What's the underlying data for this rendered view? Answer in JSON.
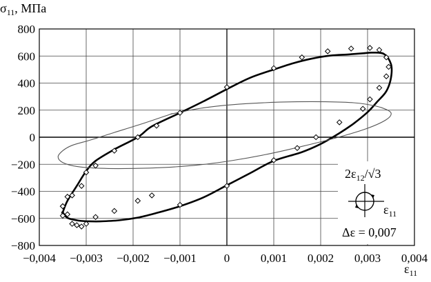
{
  "chart_data": {
    "type": "scatter",
    "ylabel": {
      "symbol": "σ",
      "subscript": "11",
      "unit": ", МПа"
    },
    "xlabel": {
      "symbol": "ε",
      "subscript": "11"
    },
    "xlim": [
      -0.004,
      0.004
    ],
    "ylim": [
      -800,
      800
    ],
    "x_ticks": [
      "−0,004",
      "−0,003",
      "−0,002",
      "−0,001",
      "0",
      "0,001",
      "0,002",
      "0,003",
      "0,004"
    ],
    "y_ticks": [
      "800",
      "600",
      "400",
      "200",
      "0",
      "−200",
      "−400",
      "−600",
      "−800"
    ],
    "grid": true,
    "annotation": {
      "shear_label": "2ε",
      "shear_sub": "12",
      "shear_div": "/√3",
      "axis_label": "ε",
      "axis_sub": "11",
      "amplitude": "Δε = 0,007"
    },
    "series": [
      {
        "type": "line",
        "style": "thick",
        "color": "#000000",
        "x": [
          -0.0035,
          -0.0034,
          -0.0032,
          -0.003,
          -0.0028,
          -0.0024,
          -0.0019,
          -0.0016,
          -0.001,
          -0.0005,
          0,
          0.0005,
          0.001,
          0.0014,
          0.0018,
          0.0022,
          0.0026,
          0.0029,
          0.0031,
          0.00335,
          0.0035,
          0.0035,
          0.0034,
          0.0032,
          0.003,
          0.0027,
          0.0024,
          0.002,
          0.0016,
          0.001,
          0.0005,
          0,
          -0.0005,
          -0.001,
          -0.0015,
          -0.0019,
          -0.0023,
          -0.0027,
          -0.003,
          -0.0032,
          -0.0034,
          -0.0035
        ],
        "y": [
          -555,
          -470,
          -360,
          -250,
          -175,
          -90,
          0,
          80,
          180,
          265,
          355,
          440,
          500,
          545,
          580,
          603,
          612,
          620,
          625,
          615,
          540,
          440,
          340,
          260,
          185,
          100,
          30,
          -50,
          -110,
          -175,
          -265,
          -355,
          -445,
          -510,
          -560,
          -594,
          -614,
          -622,
          -621,
          -614,
          -596,
          -555
        ]
      },
      {
        "type": "line",
        "style": "thin",
        "color": "#555555",
        "x": [
          -0.0012,
          -0.0009,
          -0.0005,
          0.0001,
          0.0008,
          0.0015,
          0.0021,
          0.0027,
          0.003,
          0.0033,
          0.0035,
          0.0034,
          0.003,
          0.0024,
          0.0016,
          0.0008,
          0.0001,
          -0.0006,
          -0.0013,
          -0.002,
          -0.0027,
          -0.0032,
          -0.0035,
          -0.0036,
          -0.0035,
          -0.0033,
          -0.0029,
          -0.0024,
          -0.0018,
          -0.0012
        ],
        "y": [
          170,
          192,
          217,
          240,
          255,
          262,
          262,
          255,
          242,
          218,
          180,
          130,
          66,
          2,
          -68,
          -130,
          -173,
          -205,
          -223,
          -231,
          -230,
          -216,
          -187,
          -145,
          -100,
          -60,
          -20,
          35,
          100,
          170
        ]
      },
      {
        "type": "scatter",
        "marker": "diamond",
        "x": [
          -0.0035,
          -0.0034,
          -0.0033,
          -0.0032,
          -0.0031,
          -0.003,
          -0.0028,
          -0.0024,
          -0.0019,
          -0.0016,
          -0.001,
          -0.001,
          0,
          0,
          0.001,
          0.001,
          0.0016,
          0.00215,
          0.00265,
          0.00305,
          0.00325,
          0.0034,
          0.00345,
          0.0034,
          0.00325,
          0.00305,
          0.0029,
          0.0024,
          0.0019,
          0.0015,
          -0.0015,
          -0.0019,
          -0.0024,
          -0.0028,
          -0.003,
          -0.0031,
          -0.0033,
          -0.0034,
          -0.0035,
          -0.0035
        ],
        "y": [
          -510,
          -570,
          -640,
          -650,
          -660,
          -640,
          -590,
          -545,
          -470,
          -430,
          -500,
          180,
          370,
          -360,
          510,
          -170,
          590,
          635,
          655,
          660,
          645,
          590,
          520,
          450,
          365,
          280,
          210,
          110,
          0,
          -80,
          85,
          0,
          -100,
          -210,
          -260,
          -360,
          -430,
          -440,
          -580,
          -510
        ]
      }
    ]
  }
}
